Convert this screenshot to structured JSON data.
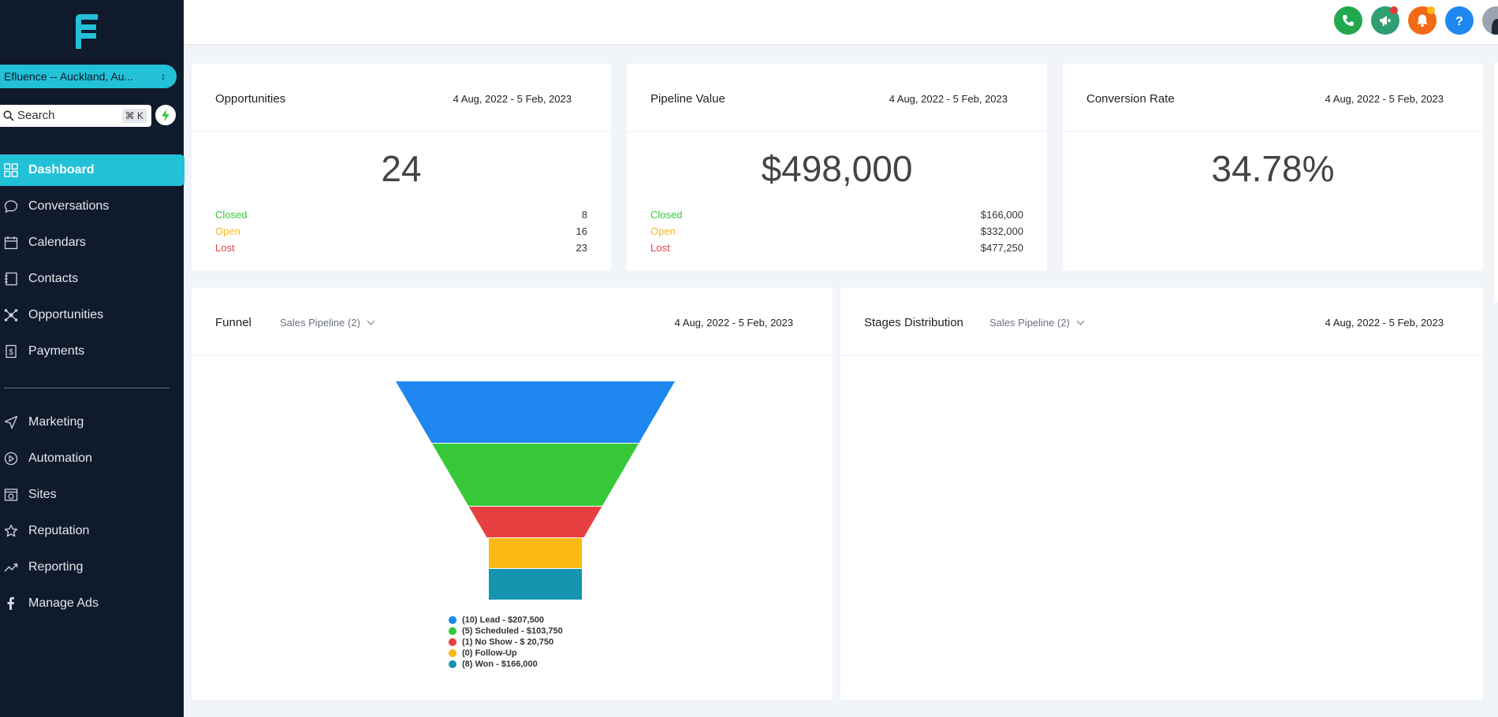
{
  "location": {
    "name": "Efluence -- Auckland, Au..."
  },
  "search": {
    "placeholder": "Search",
    "shortcut": "⌘ K"
  },
  "nav": {
    "dashboard": "Dashboard",
    "conversations": "Conversations",
    "calendars": "Calendars",
    "contacts": "Contacts",
    "opportunities": "Opportunities",
    "payments": "Payments",
    "marketing": "Marketing",
    "automation": "Automation",
    "sites": "Sites",
    "reputation": "Reputation",
    "reporting": "Reporting",
    "manage_ads": "Manage Ads"
  },
  "topbar_icons": [
    "phone-icon",
    "megaphone-icon",
    "bell-icon",
    "help-icon",
    "avatar"
  ],
  "colors": {
    "accent": "#22c1d8",
    "sidebar": "#0f1b2d",
    "closed": "#37c837",
    "open": "#fdb813",
    "lost": "#e84040"
  },
  "opportunities": {
    "title": "Opportunities",
    "date": "4 Aug, 2022 - 5 Feb, 2023",
    "value": "24",
    "closed_label": "Closed",
    "closed": "8",
    "open_label": "Open",
    "open": "16",
    "lost_label": "Lost",
    "lost": "23"
  },
  "pipeline": {
    "title": "Pipeline Value",
    "date": "4 Aug, 2022 - 5 Feb, 2023",
    "value": "$498,000",
    "closed_label": "Closed",
    "closed": "$166,000",
    "open_label": "Open",
    "open": "$332,000",
    "lost_label": "Lost",
    "lost": "$477,250"
  },
  "conversion": {
    "title": "Conversion Rate",
    "date": "4 Aug, 2022 - 5 Feb, 2023",
    "value": "34.78%"
  },
  "funnel": {
    "title": "Funnel",
    "pipeline": "Sales Pipeline (2)",
    "date": "4 Aug, 2022 - 5 Feb, 2023",
    "legend": [
      "(10) Lead - $207,500",
      "(5) Scheduled - $103,750",
      "(1) No Show - $ 20,750",
      "(0) Follow-Up",
      "(8) Won - $166,000"
    ]
  },
  "stages": {
    "title": "Stages Distribution",
    "pipeline": "Sales Pipeline (2)",
    "date": "4 Aug, 2022 - 5 Feb, 2023"
  },
  "chart_data": {
    "type": "funnel",
    "categories": [
      "Lead",
      "Scheduled",
      "No Show",
      "Follow-Up",
      "Won"
    ],
    "counts": [
      10,
      5,
      1,
      0,
      8
    ],
    "values": [
      207500,
      103750,
      20750,
      0,
      166000
    ],
    "colors": [
      "#1e88f0",
      "#37c837",
      "#e84040",
      "#fdb813",
      "#1595b0"
    ]
  }
}
